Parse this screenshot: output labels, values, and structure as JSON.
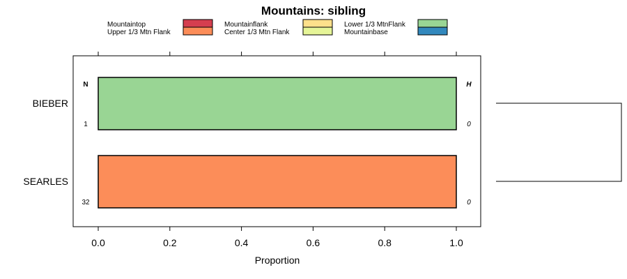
{
  "chart_data": {
    "type": "bar",
    "orientation": "horizontal",
    "stacked": true,
    "title": "Mountains: sibling",
    "xlabel": "Proportion",
    "ylabel": "",
    "xlim": [
      -0.07,
      1.07
    ],
    "x_ticks": [
      "0.0",
      "0.2",
      "0.4",
      "0.6",
      "0.8",
      "1.0"
    ],
    "x_tick_values": [
      0,
      0.2,
      0.4,
      0.6,
      0.8,
      1.0
    ],
    "categories": [
      "BIEBER",
      "SEARLES"
    ],
    "legend": {
      "placement": "top",
      "entries": [
        {
          "name": "Mountaintop",
          "color": "#D53E4F"
        },
        {
          "name": "Upper 1/3 Mtn Flank",
          "color": "#FC8D59"
        },
        {
          "name": "Mountainflank",
          "color": "#FEE08B"
        },
        {
          "name": "Center 1/3 Mtn Flank",
          "color": "#E6F598"
        },
        {
          "name": "Lower 1/3 MtnFlank",
          "color": "#99D594"
        },
        {
          "name": "Mountainbase",
          "color": "#3288BD"
        }
      ]
    },
    "series": [
      {
        "name": "Mountaintop",
        "values": [
          0,
          0
        ]
      },
      {
        "name": "Upper 1/3 Mtn Flank",
        "values": [
          0,
          1
        ]
      },
      {
        "name": "Mountainflank",
        "values": [
          0,
          0
        ]
      },
      {
        "name": "Center 1/3 Mtn Flank",
        "values": [
          0,
          0
        ]
      },
      {
        "name": "Lower 1/3 MtnFlank",
        "values": [
          1,
          0
        ]
      },
      {
        "name": "Mountainbase",
        "values": [
          0,
          0
        ]
      }
    ],
    "left_column_header": "N",
    "right_column_header": "H",
    "n_values": [
      "1",
      "32"
    ],
    "h_values": [
      "0",
      "0"
    ],
    "grid": false,
    "dendrogram": true
  }
}
